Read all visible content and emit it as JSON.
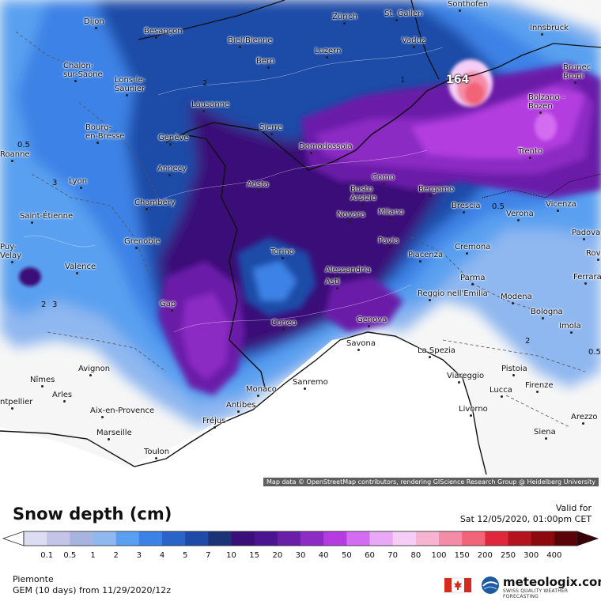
{
  "title": "Snow depth (cm)",
  "valid_label": "Valid for",
  "valid_time": "Sat 12/05/2020, 01:00pm CET",
  "region": "Piemonte",
  "model_run": "GEM (10 days) from 11/29/2020/12z",
  "attribution": "Map data © OpenStreetMap contributors, rendering GIScience Research Group @ Heidelberg University",
  "brand": "meteologix.com",
  "brand_tagline": "SWISS QUALITY WEATHER FORECASTING",
  "max_marker": "164",
  "legend": {
    "ticks": [
      "0.1",
      "0.5",
      "1",
      "2",
      "3",
      "4",
      "5",
      "7",
      "10",
      "15",
      "20",
      "30",
      "40",
      "50",
      "60",
      "70",
      "80",
      "100",
      "150",
      "200",
      "250",
      "300",
      "400"
    ],
    "colors": [
      "#dcdcf2",
      "#c4c4e8",
      "#a8b4e0",
      "#8fb7f0",
      "#5aa0f0",
      "#3c82e6",
      "#2a64c8",
      "#1e4ba8",
      "#1b3478",
      "#3a0f78",
      "#4a158e",
      "#6a1fa8",
      "#8c2cc4",
      "#b43ce0",
      "#d36cf0",
      "#e8a8f6",
      "#f4cef6",
      "#f7b4d0",
      "#f48ca8",
      "#f26478",
      "#e0283c",
      "#b4141e",
      "#8c0a0e",
      "#5a0408"
    ]
  },
  "cities": [
    {
      "name": "Dijon"
    },
    {
      "name": "Besançon"
    },
    {
      "name": "Zürich"
    },
    {
      "name": "St. Gallen"
    },
    {
      "name": "Sonthofen"
    },
    {
      "name": "Biel/Bienne"
    },
    {
      "name": "Luzern"
    },
    {
      "name": "Vaduz"
    },
    {
      "name": "Innsbruck"
    },
    {
      "name": "Chalon-\nsur-Saône"
    },
    {
      "name": "Bern"
    },
    {
      "name": "Lons-le-\nSaunier"
    },
    {
      "name": "Brunec\nBruni"
    },
    {
      "name": "Lausanne"
    },
    {
      "name": "Bolzano -\nBozen"
    },
    {
      "name": "Bourg-\nen-Bresse"
    },
    {
      "name": "Sierre"
    },
    {
      "name": "Genève"
    },
    {
      "name": "Domodossola"
    },
    {
      "name": "Roanne"
    },
    {
      "name": "Trento"
    },
    {
      "name": "Annecy"
    },
    {
      "name": "Como"
    },
    {
      "name": "Lyon"
    },
    {
      "name": "Aosta"
    },
    {
      "name": "Busto\nArsizio"
    },
    {
      "name": "Bergamo"
    },
    {
      "name": "Chambéry"
    },
    {
      "name": "Brescia"
    },
    {
      "name": "Vicenza"
    },
    {
      "name": "Saint-Étienne"
    },
    {
      "name": "Novara"
    },
    {
      "name": "Milano"
    },
    {
      "name": "Verona"
    },
    {
      "name": "Grenoble"
    },
    {
      "name": "Padova"
    },
    {
      "name": "Pavia"
    },
    {
      "name": "Cremona"
    },
    {
      "name": "Puy-\nVelay"
    },
    {
      "name": "Torino"
    },
    {
      "name": "Piacenza"
    },
    {
      "name": "Rovigo"
    },
    {
      "name": "Valence"
    },
    {
      "name": "Alessandria"
    },
    {
      "name": "Parma"
    },
    {
      "name": "Ferrara"
    },
    {
      "name": "Asti"
    },
    {
      "name": "Modena"
    },
    {
      "name": "Reggio nell'Emilia"
    },
    {
      "name": "Gap"
    },
    {
      "name": "Bologna"
    },
    {
      "name": "Cuneo"
    },
    {
      "name": "Genova"
    },
    {
      "name": "Imola"
    },
    {
      "name": "Savona"
    },
    {
      "name": "La Spezia"
    },
    {
      "name": "Avignon"
    },
    {
      "name": "Pistoia"
    },
    {
      "name": "Nîmes"
    },
    {
      "name": "Viareggio"
    },
    {
      "name": "Sanremo"
    },
    {
      "name": "Monaco"
    },
    {
      "name": "Arles"
    },
    {
      "name": "Lucca"
    },
    {
      "name": "Firenze"
    },
    {
      "name": "ntpellier"
    },
    {
      "name": "Antibes"
    },
    {
      "name": "Aix-en-Provence"
    },
    {
      "name": "Fréjus"
    },
    {
      "name": "Livorno"
    },
    {
      "name": "Arezzo"
    },
    {
      "name": "Marseille"
    },
    {
      "name": "Siena"
    },
    {
      "name": "Toulon"
    }
  ],
  "contour_labels": [
    "2",
    "0.5",
    "3",
    "2",
    "3",
    "1",
    "0.5",
    "2",
    "0.5"
  ]
}
